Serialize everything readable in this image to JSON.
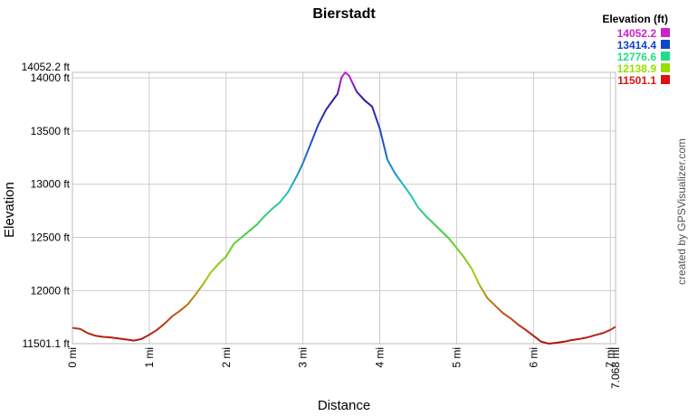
{
  "chart_data": {
    "type": "line",
    "title": "Bierstadt",
    "xlabel": "Distance",
    "ylabel": "Elevation",
    "xlim": [
      0,
      7.068
    ],
    "ylim": [
      11501.1,
      14052.2
    ],
    "grid": true,
    "x_ticks": [
      {
        "value": 0,
        "label": "0 mi"
      },
      {
        "value": 1,
        "label": "1 mi"
      },
      {
        "value": 2,
        "label": "2 mi"
      },
      {
        "value": 3,
        "label": "3 mi"
      },
      {
        "value": 4,
        "label": "4 mi"
      },
      {
        "value": 5,
        "label": "5 mi"
      },
      {
        "value": 6,
        "label": "6 mi"
      },
      {
        "value": 7,
        "label": "7 mi"
      },
      {
        "value": 7.068,
        "label": "7.068 mi"
      }
    ],
    "y_ticks": [
      {
        "value": 11501.1,
        "label": "11501.1 ft"
      },
      {
        "value": 12000,
        "label": "12000 ft"
      },
      {
        "value": 12500,
        "label": "12500 ft"
      },
      {
        "value": 13000,
        "label": "13000 ft"
      },
      {
        "value": 13500,
        "label": "13500 ft"
      },
      {
        "value": 14000,
        "label": "14000 ft"
      },
      {
        "value": 14052.2,
        "label": "14052.2 ft"
      }
    ],
    "legend": {
      "title": "Elevation (ft)",
      "placement": "top-right",
      "entries": [
        {
          "label": "14052.2",
          "color": "#cc22cc"
        },
        {
          "label": "13414.4",
          "color": "#1144cc"
        },
        {
          "label": "12776.6",
          "color": "#22dd88"
        },
        {
          "label": "12138.9",
          "color": "#99dd00"
        },
        {
          "label": "11501.1",
          "color": "#dd1111"
        }
      ]
    },
    "series": [
      {
        "x": [
          0,
          0.1,
          0.2,
          0.3,
          0.4,
          0.5,
          0.6,
          0.7,
          0.8,
          0.9,
          1.0,
          1.1,
          1.2,
          1.3,
          1.4,
          1.5,
          1.6,
          1.7,
          1.8,
          1.9,
          2.0,
          2.1,
          2.2,
          2.3,
          2.4,
          2.5,
          2.6,
          2.7,
          2.8,
          2.9,
          2.95,
          3.0,
          3.1,
          3.2,
          3.3,
          3.4,
          3.45,
          3.5,
          3.55,
          3.6,
          3.7,
          3.8,
          3.9,
          4.0,
          4.1,
          4.2,
          4.3,
          4.4,
          4.5,
          4.6,
          4.7,
          4.8,
          4.9,
          5.0,
          5.1,
          5.2,
          5.3,
          5.4,
          5.5,
          5.6,
          5.7,
          5.8,
          5.9,
          6.0,
          6.1,
          6.2,
          6.3,
          6.4,
          6.5,
          6.6,
          6.7,
          6.8,
          6.9,
          7.0,
          7.068
        ],
        "values": [
          11650,
          11640,
          11600,
          11575,
          11565,
          11560,
          11550,
          11540,
          11530,
          11545,
          11585,
          11630,
          11690,
          11760,
          11810,
          11870,
          11960,
          12060,
          12170,
          12250,
          12320,
          12440,
          12500,
          12560,
          12620,
          12700,
          12770,
          12830,
          12920,
          13050,
          13120,
          13200,
          13380,
          13560,
          13700,
          13800,
          13850,
          14000,
          14052.2,
          14020,
          13870,
          13790,
          13730,
          13520,
          13230,
          13100,
          13000,
          12900,
          12780,
          12700,
          12630,
          12560,
          12490,
          12400,
          12310,
          12200,
          12050,
          11930,
          11860,
          11790,
          11740,
          11680,
          11630,
          11575,
          11520,
          11501.1,
          11510,
          11520,
          11535,
          11545,
          11560,
          11580,
          11600,
          11630,
          11660
        ]
      }
    ]
  },
  "credit": "created by GPSVisualizer.com"
}
